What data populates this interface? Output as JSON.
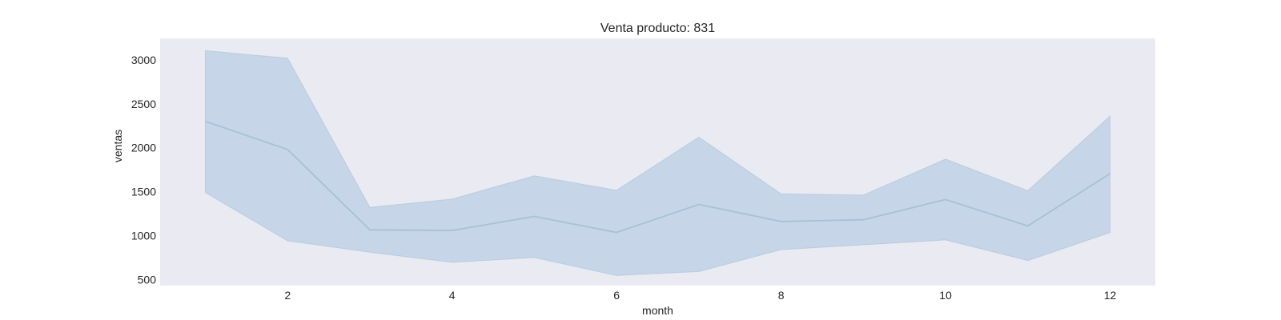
{
  "chart_data": {
    "type": "line",
    "title": "Venta producto: 831",
    "xlabel": "month",
    "ylabel": "ventas",
    "x": [
      1,
      2,
      3,
      4,
      5,
      6,
      7,
      8,
      9,
      10,
      11,
      12
    ],
    "series": [
      {
        "values": [
          2300,
          1980,
          1065,
          1058,
          1218,
          1035,
          1355,
          1160,
          1180,
          1410,
          1110,
          1705
        ],
        "band_upper": [
          3105,
          3020,
          1320,
          1415,
          1680,
          1515,
          2120,
          1475,
          1460,
          1870,
          1510,
          2360
        ],
        "band_lower": [
          1490,
          940,
          810,
          695,
          750,
          545,
          590,
          840,
          895,
          950,
          715,
          1035
        ]
      }
    ],
    "xticks": [
      2,
      4,
      6,
      8,
      10,
      12
    ],
    "yticks": [
      500,
      1000,
      1500,
      2000,
      2500,
      3000
    ],
    "xlim": [
      0.45,
      12.55
    ],
    "ylim": [
      430,
      3245
    ],
    "grid": false,
    "colors": {
      "plot_background": "#eaeaf2",
      "line": "#a6c1d8",
      "band_fill": "#c2d3e5",
      "text": "#262626"
    }
  }
}
